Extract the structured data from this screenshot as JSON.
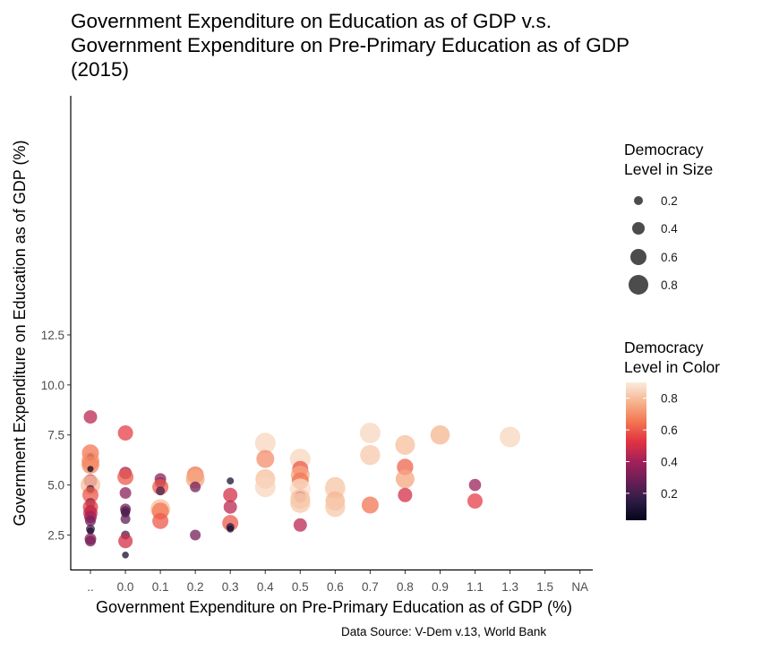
{
  "chart_data": {
    "type": "scatter",
    "title": [
      "Government Expenditure on Education as of GDP v.s.",
      "Government Expenditure on Pre-Primary Education as of GDP",
      "(2015)"
    ],
    "xlabel": "Government Expenditure on Pre-Primary Education as of GDP (%)",
    "ylabel": "Government Expenditure on Education as of GDP (%)",
    "x_categories": [
      "..",
      "0.0",
      "0.1",
      "0.2",
      "0.3",
      "0.4",
      "0.5",
      "0.6",
      "0.7",
      "0.8",
      "0.9",
      "1.1",
      "1.3",
      "1.5",
      "NA"
    ],
    "y_ticks": [
      2.5,
      5.0,
      7.5,
      10.0,
      12.5
    ],
    "y_tick_labels": [
      "2.5",
      "5.0",
      "7.5",
      "10.0",
      "12.5"
    ],
    "ylim": [
      0.9,
      13.1
    ],
    "grid": false,
    "caption": "Data Source: V-Dem v.13, World Bank",
    "legend_size": {
      "title": [
        "Democracy",
        "Level in Size"
      ],
      "entries": [
        {
          "label": "0.2",
          "value": 0.2
        },
        {
          "label": "0.4",
          "value": 0.4
        },
        {
          "label": "0.6",
          "value": 0.6
        },
        {
          "label": "0.8",
          "value": 0.8
        }
      ]
    },
    "legend_color": {
      "title": [
        "Democracy",
        "Level in Color"
      ],
      "ticks": [
        {
          "label": "0.2",
          "value": 0.2
        },
        {
          "label": "0.4",
          "value": 0.4
        },
        {
          "label": "0.6",
          "value": 0.6
        },
        {
          "label": "0.8",
          "value": 0.8
        }
      ],
      "range": [
        0.03,
        0.9
      ],
      "palette": [
        "#03051a",
        "#2e1c44",
        "#6a1f57",
        "#a3215a",
        "#e13342",
        "#f37651",
        "#f6b48f",
        "#faebdd"
      ]
    },
    "points": [
      {
        "x": "..",
        "y": 8.4,
        "d": 0.45
      },
      {
        "x": "..",
        "y": 6.6,
        "d": 0.65
      },
      {
        "x": "..",
        "y": 6.4,
        "d": 0.1
      },
      {
        "x": "..",
        "y": 6.2,
        "d": 0.7
      },
      {
        "x": "..",
        "y": 6.0,
        "d": 0.68
      },
      {
        "x": "..",
        "y": 5.8,
        "d": 0.05
      },
      {
        "x": "..",
        "y": 5.2,
        "d": 0.45
      },
      {
        "x": "..",
        "y": 5.0,
        "d": 0.8
      },
      {
        "x": "..",
        "y": 4.8,
        "d": 0.15
      },
      {
        "x": "..",
        "y": 4.5,
        "d": 0.6
      },
      {
        "x": "..",
        "y": 4.1,
        "d": 0.25
      },
      {
        "x": "..",
        "y": 3.9,
        "d": 0.55
      },
      {
        "x": "..",
        "y": 3.7,
        "d": 0.35
      },
      {
        "x": "..",
        "y": 3.6,
        "d": 0.5
      },
      {
        "x": "..",
        "y": 3.4,
        "d": 0.4
      },
      {
        "x": "..",
        "y": 3.2,
        "d": 0.3
      },
      {
        "x": "..",
        "y": 2.8,
        "d": 0.2
      },
      {
        "x": "..",
        "y": 2.7,
        "d": 0.1
      },
      {
        "x": "..",
        "y": 2.3,
        "d": 0.35
      },
      {
        "x": "..",
        "y": 2.2,
        "d": 0.3
      },
      {
        "x": "0.0",
        "y": 7.6,
        "d": 0.55
      },
      {
        "x": "0.0",
        "y": 5.6,
        "d": 0.4
      },
      {
        "x": "0.0",
        "y": 5.4,
        "d": 0.6
      },
      {
        "x": "0.0",
        "y": 4.6,
        "d": 0.35
      },
      {
        "x": "0.0",
        "y": 3.8,
        "d": 0.3
      },
      {
        "x": "0.0",
        "y": 3.7,
        "d": 0.25
      },
      {
        "x": "0.0",
        "y": 3.6,
        "d": 0.2
      },
      {
        "x": "0.0",
        "y": 3.3,
        "d": 0.25
      },
      {
        "x": "0.0",
        "y": 2.5,
        "d": 0.2
      },
      {
        "x": "0.0",
        "y": 2.2,
        "d": 0.5
      },
      {
        "x": "0.0",
        "y": 1.5,
        "d": 0.08
      },
      {
        "x": "0.1",
        "y": 5.3,
        "d": 0.35
      },
      {
        "x": "0.1",
        "y": 5.1,
        "d": 0.3
      },
      {
        "x": "0.1",
        "y": 4.9,
        "d": 0.6
      },
      {
        "x": "0.1",
        "y": 4.7,
        "d": 0.2
      },
      {
        "x": "0.1",
        "y": 3.8,
        "d": 0.8
      },
      {
        "x": "0.1",
        "y": 3.7,
        "d": 0.65
      },
      {
        "x": "0.1",
        "y": 3.2,
        "d": 0.6
      },
      {
        "x": "0.2",
        "y": 5.5,
        "d": 0.65
      },
      {
        "x": "0.2",
        "y": 5.3,
        "d": 0.75
      },
      {
        "x": "0.2",
        "y": 4.9,
        "d": 0.3
      },
      {
        "x": "0.2",
        "y": 2.5,
        "d": 0.3
      },
      {
        "x": "0.3",
        "y": 5.2,
        "d": 0.1
      },
      {
        "x": "0.3",
        "y": 4.5,
        "d": 0.5
      },
      {
        "x": "0.3",
        "y": 3.9,
        "d": 0.45
      },
      {
        "x": "0.3",
        "y": 3.1,
        "d": 0.6
      },
      {
        "x": "0.3",
        "y": 2.9,
        "d": 0.15
      },
      {
        "x": "0.3",
        "y": 2.8,
        "d": 0.1
      },
      {
        "x": "0.4",
        "y": 7.1,
        "d": 0.85
      },
      {
        "x": "0.4",
        "y": 6.3,
        "d": 0.7
      },
      {
        "x": "0.4",
        "y": 5.3,
        "d": 0.8
      },
      {
        "x": "0.4",
        "y": 4.9,
        "d": 0.85
      },
      {
        "x": "0.5",
        "y": 6.3,
        "d": 0.85
      },
      {
        "x": "0.5",
        "y": 5.8,
        "d": 0.6
      },
      {
        "x": "0.5",
        "y": 5.5,
        "d": 0.75
      },
      {
        "x": "0.5",
        "y": 5.2,
        "d": 0.65
      },
      {
        "x": "0.5",
        "y": 4.8,
        "d": 0.87
      },
      {
        "x": "0.5",
        "y": 4.4,
        "d": 0.35
      },
      {
        "x": "0.5",
        "y": 4.3,
        "d": 0.8
      },
      {
        "x": "0.5",
        "y": 4.1,
        "d": 0.82
      },
      {
        "x": "0.5",
        "y": 3.0,
        "d": 0.45
      },
      {
        "x": "0.6",
        "y": 4.9,
        "d": 0.8
      },
      {
        "x": "0.6",
        "y": 4.8,
        "d": 0.85
      },
      {
        "x": "0.6",
        "y": 4.2,
        "d": 0.78
      },
      {
        "x": "0.6",
        "y": 3.9,
        "d": 0.82
      },
      {
        "x": "0.7",
        "y": 7.6,
        "d": 0.85
      },
      {
        "x": "0.7",
        "y": 6.5,
        "d": 0.82
      },
      {
        "x": "0.7",
        "y": 4.0,
        "d": 0.65
      },
      {
        "x": "0.8",
        "y": 7.0,
        "d": 0.8
      },
      {
        "x": "0.8",
        "y": 5.9,
        "d": 0.62
      },
      {
        "x": "0.8",
        "y": 5.3,
        "d": 0.75
      },
      {
        "x": "0.8",
        "y": 4.5,
        "d": 0.5
      },
      {
        "x": "0.9",
        "y": 7.5,
        "d": 0.78
      },
      {
        "x": "1.1",
        "y": 5.0,
        "d": 0.38
      },
      {
        "x": "1.1",
        "y": 4.2,
        "d": 0.55
      },
      {
        "x": "1.3",
        "y": 7.4,
        "d": 0.85
      }
    ]
  }
}
